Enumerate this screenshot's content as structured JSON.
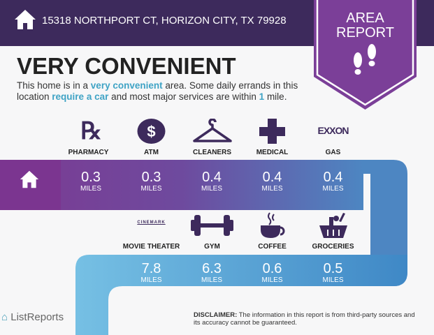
{
  "header": {
    "address": "15318 NORTHPORT CT, HORIZON CITY, TX 79928",
    "badge_line1": "AREA",
    "badge_line2": "REPORT"
  },
  "main": {
    "title": "VERY CONVENIENT",
    "desc": {
      "p1": "This home is in a ",
      "h1": "very convenient",
      "p2": " area. Some daily errands in this location ",
      "h2": "require a car",
      "p3": " and most major services are within ",
      "h3": "1",
      "p4": " mile."
    }
  },
  "top_row": [
    {
      "label": "PHARMACY",
      "icon": "rx-icon",
      "value": "0.3",
      "unit": "MILES"
    },
    {
      "label": "ATM",
      "icon": "dollar-icon",
      "value": "0.3",
      "unit": "MILES"
    },
    {
      "label": "CLEANERS",
      "icon": "hanger-icon",
      "value": "0.4",
      "unit": "MILES"
    },
    {
      "label": "MEDICAL",
      "icon": "cross-icon",
      "value": "0.4",
      "unit": "MILES"
    },
    {
      "label": "GAS",
      "icon": "exxon-logo",
      "logo_text": "EXXON",
      "value": "0.4",
      "unit": "MILES"
    }
  ],
  "bottom_row": [
    {
      "label": "MOVIE THEATER",
      "icon": "cinemark-logo",
      "logo_text": "CINEMARK",
      "value": "7.8",
      "unit": "MILES"
    },
    {
      "label": "GYM",
      "icon": "dumbbell-icon",
      "value": "6.3",
      "unit": "MILES"
    },
    {
      "label": "COFFEE",
      "icon": "coffee-icon",
      "value": "0.6",
      "unit": "MILES"
    },
    {
      "label": "GROCERIES",
      "icon": "basket-icon",
      "value": "0.5",
      "unit": "MILES"
    }
  ],
  "footer": {
    "disclaimer_label": "DISCLAIMER:",
    "disclaimer": " The information in this report is from third-party sources and its accuracy cannot be guaranteed.",
    "logo": "ListReports"
  },
  "colors": {
    "header": "#3d2a5c",
    "badge": "#7b3f98",
    "accent": "#3fa3c5"
  }
}
